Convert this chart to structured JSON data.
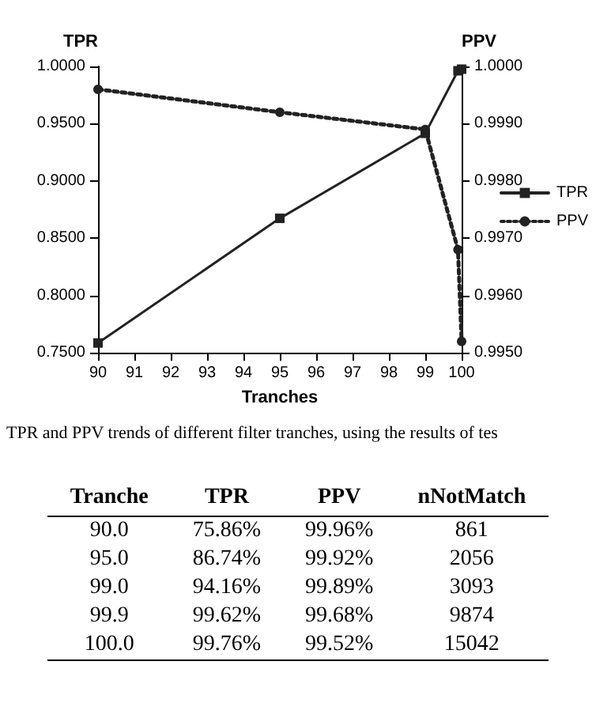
{
  "chart_data": {
    "type": "line",
    "xlabel": "Tranches",
    "ylabel": "TPR",
    "y2label": "PPV",
    "x": [
      90,
      95,
      99,
      99.9,
      100
    ],
    "series": [
      {
        "name": "TPR",
        "color": "#222222",
        "values": [
          0.7586,
          0.8674,
          0.9416,
          0.9962,
          0.9976
        ],
        "marker": "square",
        "line_style": "solid"
      },
      {
        "name": "PPV",
        "color": "#222222",
        "axis": "y2",
        "values": [
          0.9996,
          0.9992,
          0.9989,
          0.9968,
          0.9952
        ],
        "marker": "circle",
        "line_style": "dotted"
      }
    ],
    "xlim": [
      90,
      100
    ],
    "xticks": [
      90,
      91,
      92,
      93,
      94,
      95,
      96,
      97,
      98,
      99,
      100
    ],
    "ylim": [
      0.75,
      1.0
    ],
    "yticks": [
      {
        "value": 0.75,
        "label": "0.7500"
      },
      {
        "value": 0.8,
        "label": "0.8000"
      },
      {
        "value": 0.85,
        "label": "0.8500"
      },
      {
        "value": 0.9,
        "label": "0.9000"
      },
      {
        "value": 0.95,
        "label": "0.9500"
      },
      {
        "value": 1.0,
        "label": "1.0000"
      }
    ],
    "y2lim": [
      0.995,
      1.0
    ],
    "y2ticks": [
      {
        "value": 0.995,
        "label": "0.9950"
      },
      {
        "value": 0.996,
        "label": "0.9960"
      },
      {
        "value": 0.997,
        "label": "0.9970"
      },
      {
        "value": 0.998,
        "label": "0.9980"
      },
      {
        "value": 0.999,
        "label": "0.9990"
      },
      {
        "value": 1.0,
        "label": "1.0000"
      }
    ],
    "grid": false,
    "legend": "right",
    "annotations": [
      "TPR and PPV trends of different filter tranches, using the results of tes",
      "Tranche\tTPR\tPPV\tnNotMatch",
      "90.0\t75.86%\t99.96%\t861",
      "95.0\t86.74%\t99.92%\t2056",
      "99.0\t94.16%\t99.89%\t3093",
      "99.9\t99.62%\t99.68%\t9874",
      "100.0\t99.76%\t99.52%\t15042"
    ]
  }
}
